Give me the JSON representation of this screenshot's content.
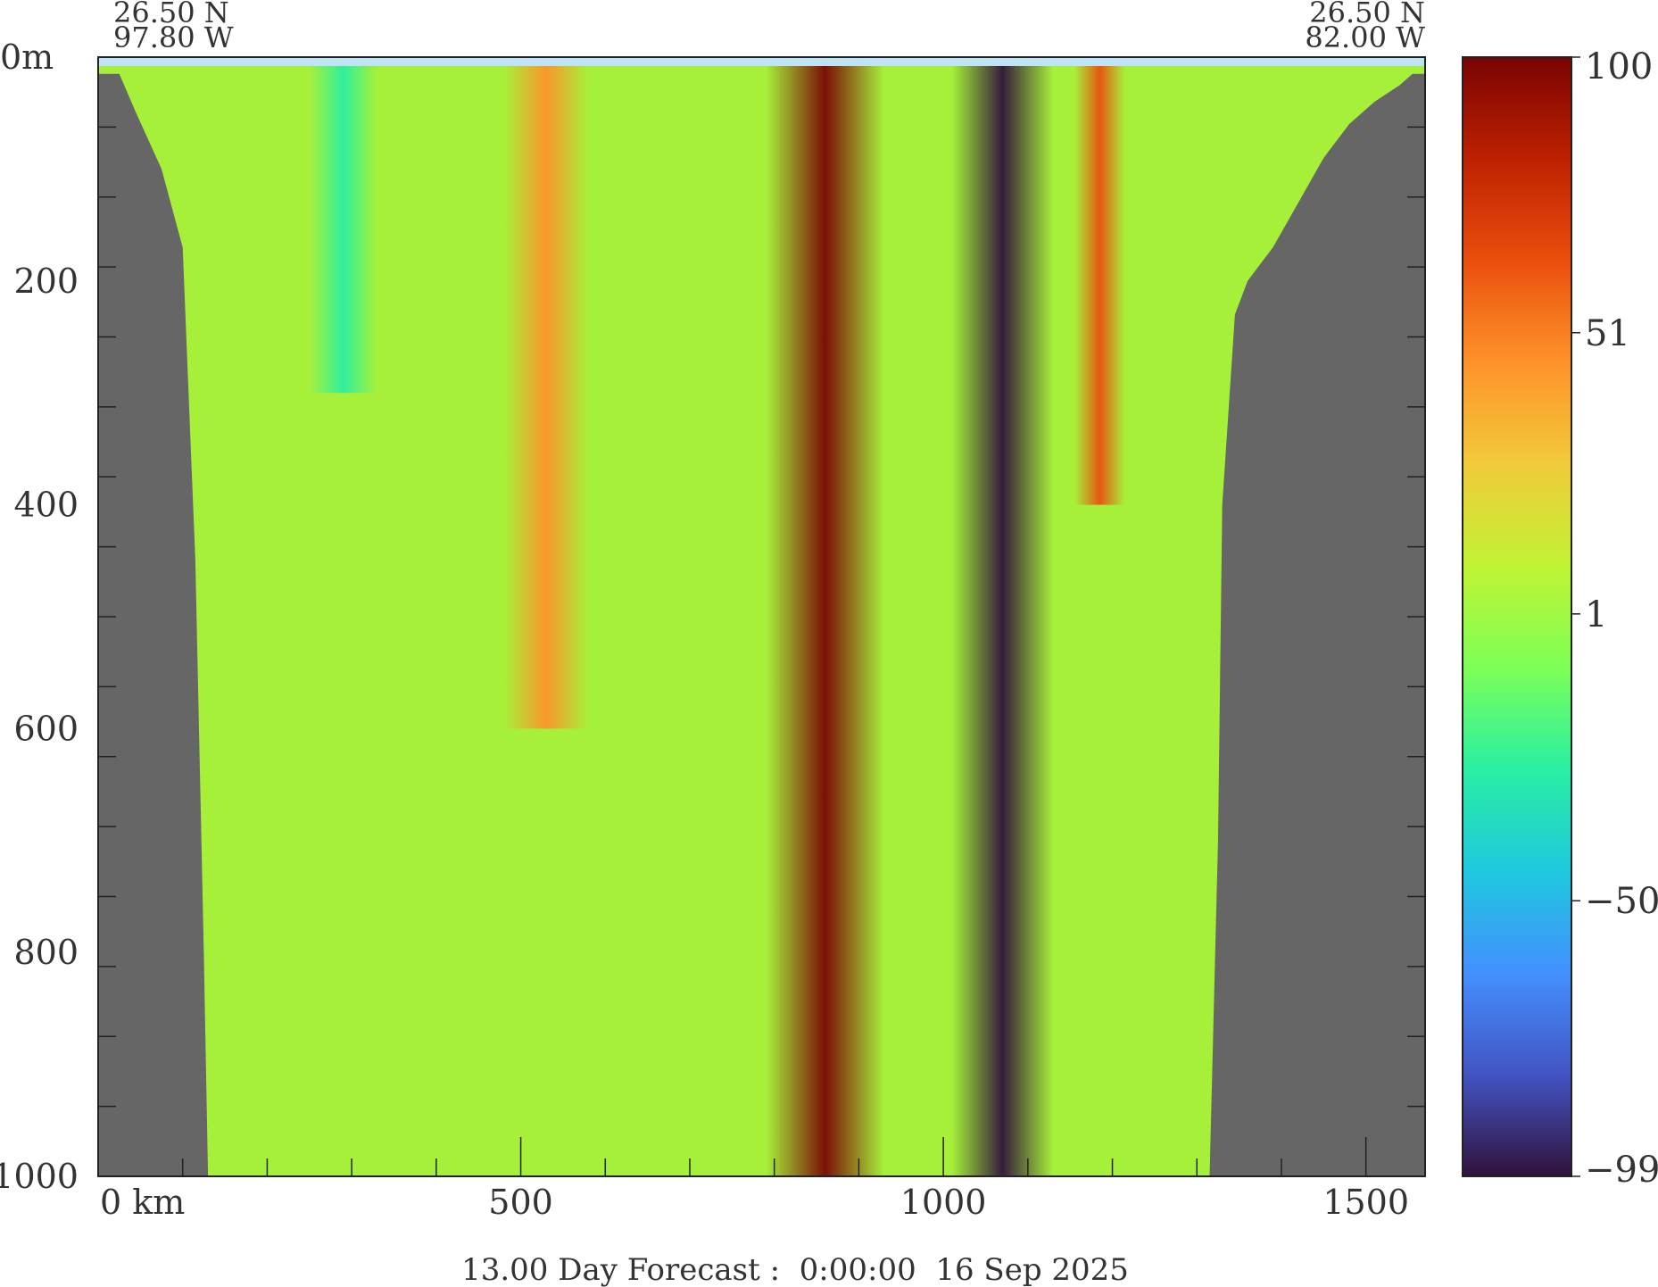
{
  "chart_data": {
    "type": "heatmap",
    "title": "",
    "xlabel": "",
    "ylabel": "",
    "xlim": [
      0,
      1570
    ],
    "ylim": [
      0,
      1000
    ],
    "y_inverted": true,
    "x_unit_label": "0 km",
    "y_unit_label": "0m",
    "x_ticks": [
      0,
      500,
      1000,
      1500
    ],
    "x_tick_labels": [
      "0 km",
      "500",
      "1000",
      "1500"
    ],
    "y_ticks": [
      0,
      200,
      400,
      600,
      800,
      1000
    ],
    "y_tick_labels": [
      "0m",
      "200",
      "400",
      "600",
      "800",
      "1000"
    ],
    "left_corner": {
      "lat": "26.50 N",
      "lon": "97.80 W"
    },
    "right_corner": {
      "lat": "26.50 N",
      "lon": "82.00 W"
    },
    "colorbar": {
      "min": -99,
      "max": 100,
      "tick_values": [
        100,
        51,
        1,
        -50,
        -99
      ],
      "tick_labels": [
        "100",
        "51",
        "1",
        "−50",
        "−99"
      ],
      "colors": [
        "#30123b",
        "#4454c4",
        "#4490fe",
        "#1fc8de",
        "#29efa2",
        "#7dff56",
        "#c1f334",
        "#f1ca3a",
        "#fe922a",
        "#ea4f0d",
        "#be2102",
        "#7a0403"
      ]
    },
    "land_color": "#666666",
    "shelf_color": "#bde3f5",
    "bathymetry": {
      "x_km": [
        0,
        25,
        45,
        75,
        100,
        115,
        125,
        130,
        135,
        155,
        175,
        1315,
        1325,
        1330,
        1345,
        1360,
        1390,
        1420,
        1450,
        1480,
        1510,
        1540,
        1555,
        1570
      ],
      "depth_m": [
        15,
        15,
        50,
        100,
        170,
        450,
        800,
        1000,
        1000,
        1000,
        1000,
        1000,
        700,
        400,
        230,
        200,
        170,
        130,
        90,
        60,
        40,
        25,
        15,
        15
      ]
    },
    "features": [
      {
        "x_center_km": 860,
        "width_km": 70,
        "depth_top_m": 0,
        "depth_bottom_m": 1000,
        "peak_value": 100,
        "sign": "positive"
      },
      {
        "x_center_km": 1070,
        "width_km": 60,
        "depth_top_m": 0,
        "depth_bottom_m": 1000,
        "peak_value": -99,
        "sign": "negative"
      },
      {
        "x_center_km": 530,
        "width_km": 50,
        "depth_top_m": 0,
        "depth_bottom_m": 600,
        "peak_value": 40,
        "sign": "positive"
      },
      {
        "x_center_km": 1185,
        "width_km": 30,
        "depth_top_m": 0,
        "depth_bottom_m": 400,
        "peak_value": 60,
        "sign": "positive"
      },
      {
        "x_center_km": 290,
        "width_km": 40,
        "depth_top_m": 0,
        "depth_bottom_m": 300,
        "peak_value": -30,
        "sign": "negative"
      }
    ],
    "footer": "13.00 Day Forecast :  0:00:00  16 Sep 2025"
  }
}
